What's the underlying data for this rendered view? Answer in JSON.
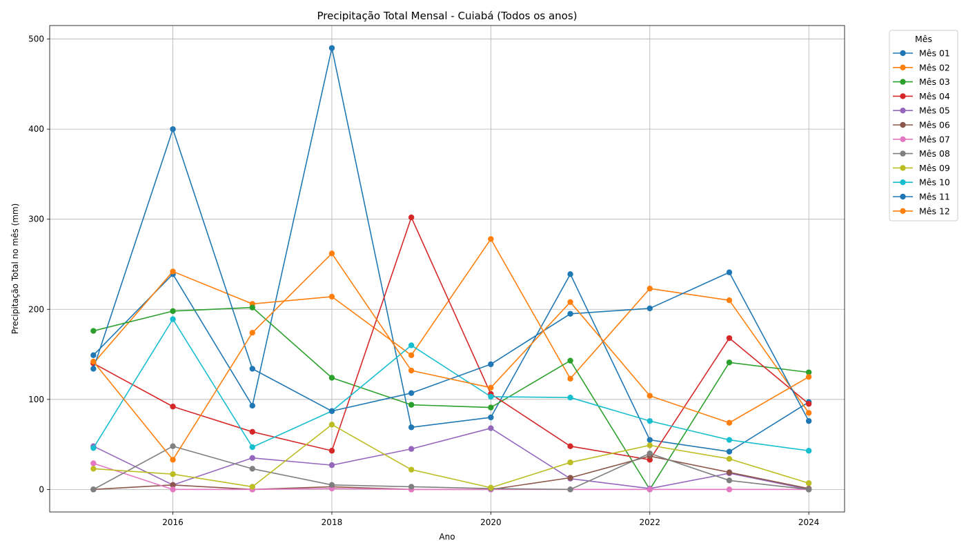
{
  "chart_data": {
    "type": "line",
    "title": "Precipitação Total Mensal - Cuiabá (Todos os anos)",
    "xlabel": "Ano",
    "ylabel": "Precipitação Total no mês (mm)",
    "xlim": [
      2014.45,
      2024.45
    ],
    "ylim": [
      -25,
      515
    ],
    "x_ticks": [
      2016,
      2018,
      2020,
      2022,
      2024
    ],
    "y_ticks": [
      0,
      100,
      200,
      300,
      400,
      500
    ],
    "grid": true,
    "legend": {
      "title": "Mês",
      "placement": "outside-top-right"
    },
    "x": [
      2015,
      2016,
      2017,
      2018,
      2019,
      2020,
      2021,
      2022,
      2023,
      2024
    ],
    "series": [
      {
        "name": "Mês 01",
        "color": "#1f77b4",
        "values": [
          149,
          239,
          93,
          490,
          69,
          80,
          239,
          55,
          42,
          97
        ]
      },
      {
        "name": "Mês 02",
        "color": "#ff7f0e",
        "values": [
          140,
          242,
          206,
          214,
          149,
          278,
          123,
          223,
          210,
          85
        ]
      },
      {
        "name": "Mês 03",
        "color": "#2ca02c",
        "values": [
          176,
          198,
          202,
          124,
          94,
          91,
          143,
          0,
          141,
          130
        ]
      },
      {
        "name": "Mês 04",
        "color": "#d62728",
        "values": [
          140,
          92,
          64,
          43,
          302,
          106,
          48,
          33,
          168,
          95
        ]
      },
      {
        "name": "Mês 05",
        "color": "#9467bd",
        "values": [
          48,
          5,
          35,
          27,
          45,
          68,
          12,
          1,
          18,
          0
        ]
      },
      {
        "name": "Mês 06",
        "color": "#8c564b",
        "values": [
          0,
          5,
          0,
          3,
          0,
          0,
          13,
          37,
          19,
          1
        ]
      },
      {
        "name": "Mês 07",
        "color": "#e377c2",
        "values": [
          29,
          0,
          0,
          1,
          0,
          0,
          0,
          0,
          0,
          0
        ]
      },
      {
        "name": "Mês 08",
        "color": "#7f7f7f",
        "values": [
          0,
          48,
          23,
          5,
          3,
          1,
          0,
          40,
          10,
          0
        ]
      },
      {
        "name": "Mês 09",
        "color": "#bcbd22",
        "values": [
          23,
          17,
          3,
          72,
          22,
          2,
          30,
          49,
          34,
          7
        ]
      },
      {
        "name": "Mês 10",
        "color": "#17becf",
        "values": [
          46,
          189,
          47,
          87,
          160,
          103,
          102,
          76,
          55,
          43
        ]
      },
      {
        "name": "Mês 11",
        "color": "#1f77b4",
        "values": [
          134,
          400,
          134,
          87,
          107,
          139,
          195,
          201,
          241,
          76
        ]
      },
      {
        "name": "Mês 12",
        "color": "#ff7f0e",
        "values": [
          142,
          33,
          174,
          262,
          132,
          113,
          208,
          104,
          74,
          125
        ]
      }
    ]
  }
}
